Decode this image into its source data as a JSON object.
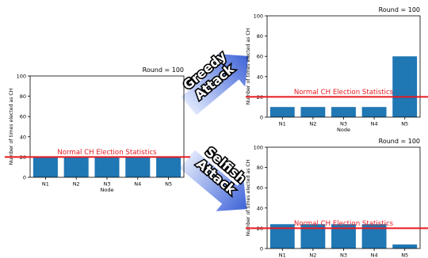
{
  "colors": {
    "bar": "#1f77b4",
    "threshold_line": "#e8191f",
    "threshold_text": "#e8191f",
    "arrow_light": "#dde6fb",
    "arrow_dark": "#3f63d8"
  },
  "arrows": {
    "greedy": {
      "line1": "Greedy",
      "line2": "Attack"
    },
    "selfish": {
      "line1": "Selfish",
      "line2": "Attack"
    }
  },
  "chart_data": [
    {
      "id": "baseline",
      "type": "bar",
      "title": "Round = 100",
      "xlabel": "Node",
      "ylabel": "Number of times elected as CH",
      "categories": [
        "N1",
        "N2",
        "N3",
        "N4",
        "N5"
      ],
      "values": [
        20,
        20,
        20,
        20,
        20
      ],
      "ylim": [
        0,
        100
      ],
      "yticks": [
        0,
        20,
        40,
        60,
        80,
        100
      ],
      "threshold": {
        "value": 20,
        "label": "Normal CH Election Statistics"
      }
    },
    {
      "id": "greedy",
      "type": "bar",
      "title": "Round = 100",
      "xlabel": "Node",
      "ylabel": "Number of times elected as CH",
      "categories": [
        "N1",
        "N2",
        "N3",
        "N4",
        "N5"
      ],
      "values": [
        10,
        10,
        10,
        10,
        60
      ],
      "ylim": [
        0,
        100
      ],
      "yticks": [
        0,
        20,
        40,
        60,
        80,
        100
      ],
      "threshold": {
        "value": 20,
        "label": "Normal CH Election Statistics"
      }
    },
    {
      "id": "selfish",
      "type": "bar",
      "title": "Round = 100",
      "xlabel": "",
      "ylabel": "Number of times elected as CH",
      "categories": [
        "N1",
        "N2",
        "N3",
        "N4",
        "N5"
      ],
      "values": [
        24,
        24,
        24,
        24,
        4
      ],
      "ylim": [
        0,
        100
      ],
      "yticks": [
        0,
        20,
        40,
        60,
        80,
        100
      ],
      "threshold": {
        "value": 20,
        "label": "Normal CH Election Statistics"
      }
    }
  ]
}
